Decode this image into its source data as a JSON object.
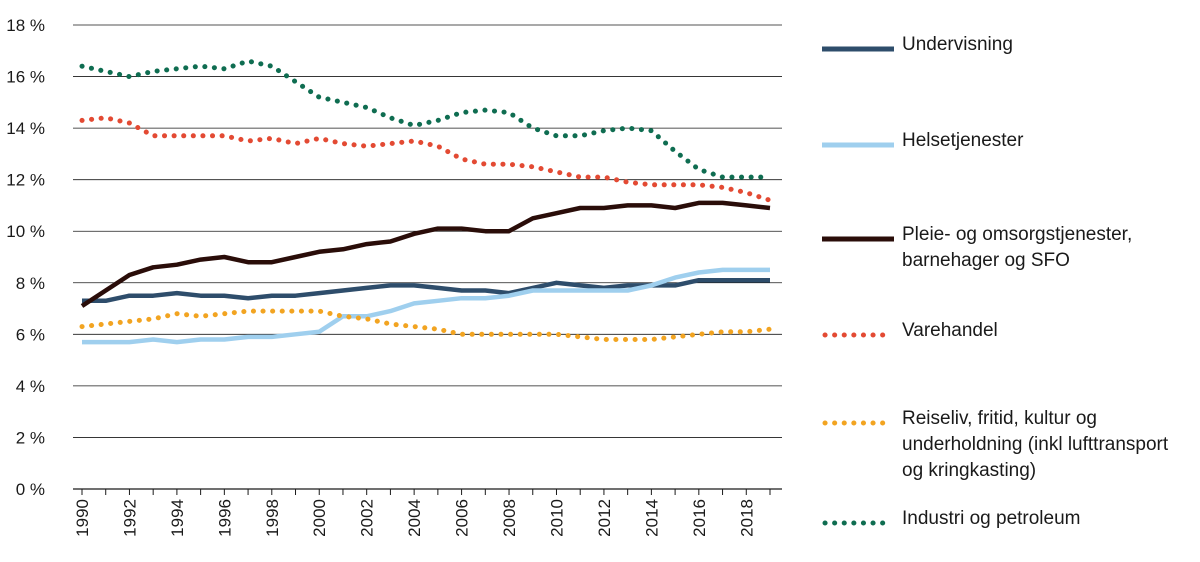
{
  "chart_data": {
    "type": "line",
    "title": "",
    "xlabel": "",
    "ylabel": "",
    "x": [
      1990,
      1991,
      1992,
      1993,
      1994,
      1995,
      1996,
      1997,
      1998,
      1999,
      2000,
      2001,
      2002,
      2003,
      2004,
      2005,
      2006,
      2007,
      2008,
      2009,
      2010,
      2011,
      2012,
      2013,
      2014,
      2015,
      2016,
      2017,
      2018,
      2019
    ],
    "xlim": [
      1990,
      2019
    ],
    "x_ticks": [
      "1990",
      "1992",
      "1994",
      "1996",
      "1998",
      "2000",
      "2002",
      "2004",
      "2006",
      "2008",
      "2010",
      "2012",
      "2014",
      "2016",
      "2018"
    ],
    "ylim": [
      0,
      18
    ],
    "y_ticks": [
      "0 %",
      "2 %",
      "4 %",
      "6 %",
      "8 %",
      "10 %",
      "12 %",
      "14 %",
      "16 %",
      "18 %"
    ],
    "grid": true,
    "legend_position": "right",
    "series": [
      {
        "name": "Undervisning",
        "color": "#2e4d6b",
        "style": "solid",
        "values": [
          7.3,
          7.3,
          7.5,
          7.5,
          7.6,
          7.5,
          7.5,
          7.4,
          7.5,
          7.5,
          7.6,
          7.7,
          7.8,
          7.9,
          7.9,
          7.8,
          7.7,
          7.7,
          7.6,
          7.8,
          8.0,
          7.9,
          7.8,
          7.9,
          7.9,
          7.9,
          8.1,
          8.1,
          8.1,
          8.1
        ]
      },
      {
        "name": "Helsetjenester",
        "color": "#9fcfee",
        "style": "solid",
        "values": [
          5.7,
          5.7,
          5.7,
          5.8,
          5.7,
          5.8,
          5.8,
          5.9,
          5.9,
          6.0,
          6.1,
          6.7,
          6.7,
          6.9,
          7.2,
          7.3,
          7.4,
          7.4,
          7.5,
          7.7,
          7.7,
          7.7,
          7.7,
          7.7,
          7.9,
          8.2,
          8.4,
          8.5,
          8.5,
          8.5
        ]
      },
      {
        "name": "Pleie- og omsorgstjenester, barnehager og SFO",
        "color": "#2a0d09",
        "style": "solid",
        "values": [
          7.1,
          7.7,
          8.3,
          8.6,
          8.7,
          8.9,
          9.0,
          8.8,
          8.8,
          9.0,
          9.2,
          9.3,
          9.5,
          9.6,
          9.9,
          10.1,
          10.1,
          10.0,
          10.0,
          10.5,
          10.7,
          10.9,
          10.9,
          11.0,
          11.0,
          10.9,
          11.1,
          11.1,
          11.0,
          10.9
        ]
      },
      {
        "name": "Varehandel",
        "color": "#e34a33",
        "style": "dotted",
        "values": [
          14.3,
          14.4,
          14.2,
          13.7,
          13.7,
          13.7,
          13.7,
          13.5,
          13.6,
          13.4,
          13.6,
          13.4,
          13.3,
          13.4,
          13.5,
          13.3,
          12.8,
          12.6,
          12.6,
          12.5,
          12.3,
          12.1,
          12.1,
          11.9,
          11.8,
          11.8,
          11.8,
          11.7,
          11.5,
          11.2
        ]
      },
      {
        "name": "Reiseliv, fritid, kultur og underholdning (inkl lufttransport og kringkasting)",
        "color": "#f2a421",
        "style": "dotted",
        "values": [
          6.3,
          6.4,
          6.5,
          6.6,
          6.8,
          6.7,
          6.8,
          6.9,
          6.9,
          6.9,
          6.9,
          6.7,
          6.6,
          6.4,
          6.3,
          6.2,
          6.0,
          6.0,
          6.0,
          6.0,
          6.0,
          5.9,
          5.8,
          5.8,
          5.8,
          5.9,
          6.0,
          6.1,
          6.1,
          6.2
        ]
      },
      {
        "name": "Industri og petroleum",
        "color": "#0f6d51",
        "style": "dotted",
        "values": [
          16.4,
          16.2,
          16.0,
          16.2,
          16.3,
          16.4,
          16.3,
          16.6,
          16.4,
          15.8,
          15.2,
          15.0,
          14.8,
          14.4,
          14.1,
          14.3,
          14.6,
          14.7,
          14.6,
          14.0,
          13.7,
          13.7,
          13.9,
          14.0,
          13.9,
          13.1,
          12.4,
          12.1,
          12.1,
          12.1
        ]
      }
    ]
  }
}
